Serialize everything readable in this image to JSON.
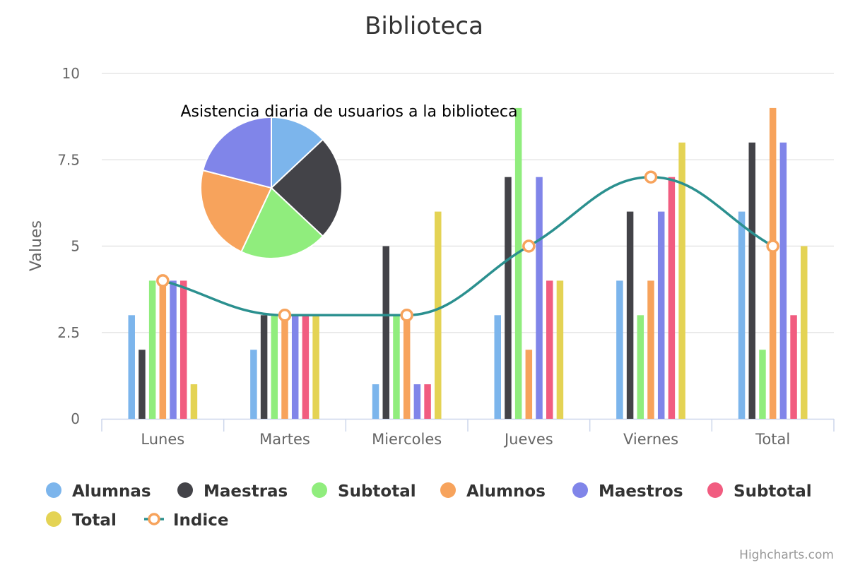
{
  "chart_data": {
    "type": "bar",
    "title": "Biblioteca",
    "ylabel": "Values",
    "ylim": [
      0,
      10
    ],
    "yticks": [
      {
        "value": 0,
        "label": "0"
      },
      {
        "value": 2.5,
        "label": "2.5"
      },
      {
        "value": 5,
        "label": "5"
      },
      {
        "value": 7.5,
        "label": "7.5"
      },
      {
        "value": 10,
        "label": "10"
      }
    ],
    "grid": true,
    "legend_placement": "bottom",
    "categories": [
      "Lunes",
      "Martes",
      "Miercoles",
      "Jueves",
      "Viernes",
      "Total"
    ],
    "series": [
      {
        "name": "Alumnas",
        "type": "column",
        "color": "#7cb5ec",
        "values": [
          3,
          2,
          1,
          3,
          4,
          6
        ]
      },
      {
        "name": "Maestras",
        "type": "column",
        "color": "#434348",
        "values": [
          2,
          3,
          5,
          7,
          6,
          8
        ]
      },
      {
        "name": "Subtotal",
        "type": "column",
        "color": "#90ed7d",
        "values": [
          4,
          3,
          3,
          9,
          3,
          2
        ]
      },
      {
        "name": "Alumnos",
        "type": "column",
        "color": "#f7a35c",
        "values": [
          4,
          3,
          3,
          2,
          4,
          9
        ]
      },
      {
        "name": "Maestros",
        "type": "column",
        "color": "#8085e9",
        "values": [
          4,
          3,
          1,
          7,
          6,
          8
        ]
      },
      {
        "name": "Subtotal",
        "type": "column",
        "color": "#f15c80",
        "values": [
          4,
          3,
          1,
          4,
          7,
          3
        ]
      },
      {
        "name": "Total",
        "type": "column",
        "color": "#e4d354",
        "values": [
          1,
          3,
          6,
          4,
          8,
          5
        ]
      },
      {
        "name": "Indice",
        "type": "spline",
        "color": "#2b908f",
        "marker_color": "#f7a35c",
        "values": [
          4,
          3,
          3,
          5,
          7,
          5
        ]
      }
    ],
    "pie": {
      "title": "Asistencia diaria de usuarios a la biblioteca",
      "slices": [
        {
          "value": 13,
          "color": "#7cb5ec"
        },
        {
          "value": 24,
          "color": "#434348"
        },
        {
          "value": 20,
          "color": "#90ed7d"
        },
        {
          "value": 22,
          "color": "#f7a35c"
        },
        {
          "value": 21,
          "color": "#8085e9"
        }
      ]
    },
    "credits": "Highcharts.com"
  }
}
